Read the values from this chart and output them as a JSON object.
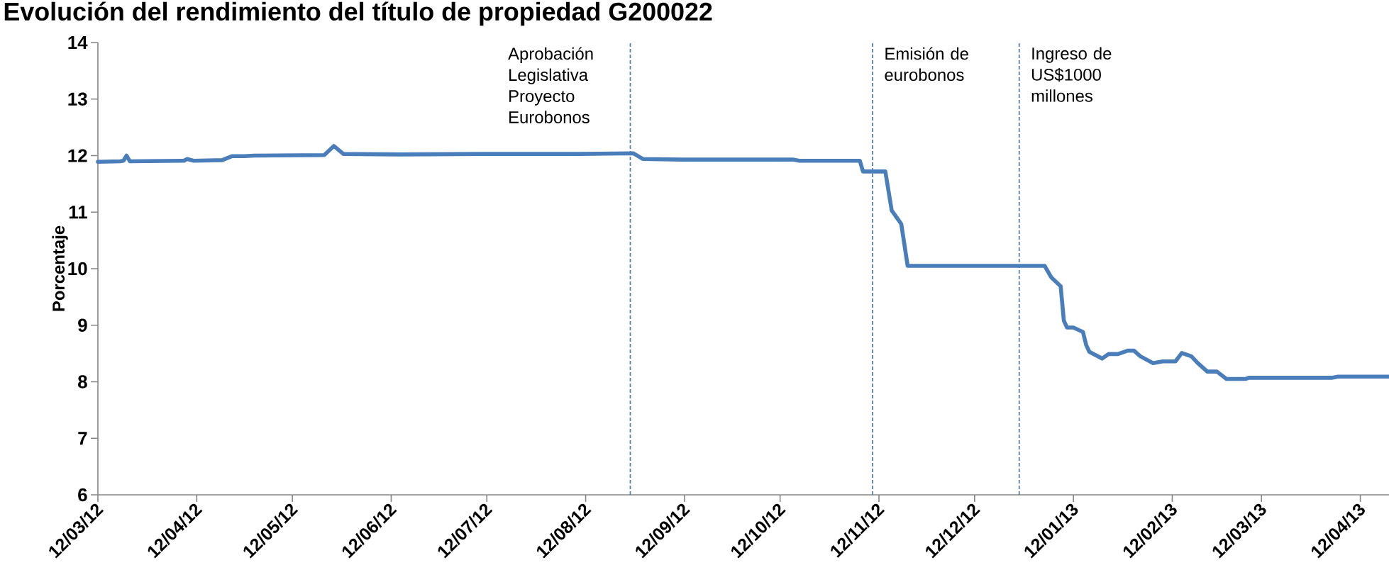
{
  "chart_data": {
    "type": "line",
    "title": "Evolución del rendimiento del título de propiedad G200022",
    "ylabel": "Porcentaje",
    "x": [
      "2012-03-12",
      "2012-03-19",
      "2012-03-20",
      "2012-03-21",
      "2012-03-22",
      "2012-04-08",
      "2012-04-09",
      "2012-04-11",
      "2012-04-20",
      "2012-04-23",
      "2012-04-27",
      "2012-04-30",
      "2012-05-22",
      "2012-05-25",
      "2012-05-28",
      "2012-06-15",
      "2012-07-10",
      "2012-08-10",
      "2012-08-27",
      "2012-08-30",
      "2012-09-11",
      "2012-10-16",
      "2012-10-18",
      "2012-11-06",
      "2012-11-07",
      "2012-11-14",
      "2012-11-16",
      "2012-11-19",
      "2012-11-21",
      "2012-12-01",
      "2013-01-03",
      "2013-01-05",
      "2013-01-08",
      "2013-01-09",
      "2013-01-10",
      "2013-01-12",
      "2013-01-15",
      "2013-01-16",
      "2013-01-17",
      "2013-01-21",
      "2013-01-23",
      "2013-01-26",
      "2013-01-29",
      "2013-01-31",
      "2013-02-02",
      "2013-02-06",
      "2013-02-09",
      "2013-02-13",
      "2013-02-15",
      "2013-02-18",
      "2013-02-20",
      "2013-02-21",
      "2013-02-23",
      "2013-02-26",
      "2013-03-01",
      "2013-03-07",
      "2013-03-08",
      "2013-04-03",
      "2013-04-05",
      "2013-04-21"
    ],
    "series": [
      {
        "color": "#4a7ebb",
        "values": [
          11.89,
          11.9,
          11.91,
          12.0,
          11.9,
          11.91,
          11.94,
          11.91,
          11.92,
          11.99,
          11.99,
          12.0,
          12.01,
          12.17,
          12.03,
          12.02,
          12.03,
          12.03,
          12.04,
          11.94,
          11.93,
          11.93,
          11.91,
          11.91,
          11.72,
          11.72,
          11.03,
          10.79,
          10.05,
          10.05,
          10.05,
          9.85,
          9.69,
          9.08,
          8.96,
          8.96,
          8.88,
          8.65,
          8.53,
          8.41,
          8.49,
          8.49,
          8.55,
          8.55,
          8.45,
          8.33,
          8.36,
          8.36,
          8.51,
          8.45,
          8.33,
          8.28,
          8.18,
          8.18,
          8.05,
          8.05,
          8.07,
          8.07,
          8.09,
          8.09
        ]
      }
    ],
    "xlim": [
      "2012-03-12",
      "2013-04-21"
    ],
    "xticks": [
      {
        "value": "2012-03-12",
        "label": "12/03/12"
      },
      {
        "value": "2012-04-12",
        "label": "12/04/12"
      },
      {
        "value": "2012-05-12",
        "label": "12/05/12"
      },
      {
        "value": "2012-06-12",
        "label": "12/06/12"
      },
      {
        "value": "2012-07-12",
        "label": "12/07/12"
      },
      {
        "value": "2012-08-12",
        "label": "12/08/12"
      },
      {
        "value": "2012-09-12",
        "label": "12/09/12"
      },
      {
        "value": "2012-10-12",
        "label": "12/10/12"
      },
      {
        "value": "2012-11-12",
        "label": "12/11/12"
      },
      {
        "value": "2012-12-12",
        "label": "12/12/12"
      },
      {
        "value": "2013-01-12",
        "label": "12/01/13"
      },
      {
        "value": "2013-02-12",
        "label": "12/02/13"
      },
      {
        "value": "2013-03-12",
        "label": "12/03/13"
      },
      {
        "value": "2013-04-12",
        "label": "12/04/13"
      }
    ],
    "ylim": [
      6,
      14
    ],
    "yticks": [
      6,
      7,
      8,
      9,
      10,
      11,
      12,
      13,
      14
    ],
    "ref_lines": [
      {
        "axis": "x",
        "value": "2012-08-26",
        "label": "Aprobación Legislativa Proyecto Eurobonos",
        "color": "#4f81bd",
        "line_style": "dashed"
      },
      {
        "axis": "x",
        "value": "2012-11-10",
        "label": "Emisión de eurobonos",
        "color": "#4f81bd",
        "line_style": "dashed"
      },
      {
        "axis": "x",
        "value": "2012-12-26",
        "label": "Ingreso de US$1000 millones",
        "color": "#4f81bd",
        "line_style": "dashed"
      }
    ]
  }
}
